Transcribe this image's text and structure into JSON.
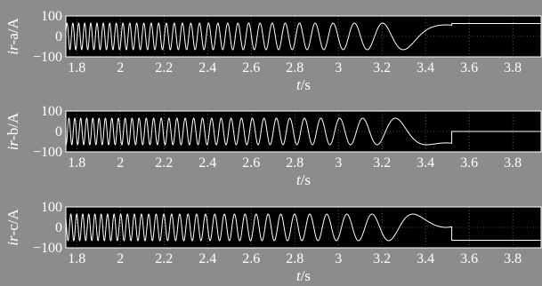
{
  "chart_data": [
    {
      "type": "line",
      "ylabel_italic": "ir",
      "ylabel_rest": "-a/A",
      "xlabel_italic": "t",
      "xlabel_rest": "/s",
      "xlim": [
        1.75,
        3.93
      ],
      "ylim": [
        -100,
        100
      ],
      "xticks": [
        "1.8",
        "2",
        "2.2",
        "2.4",
        "2.6",
        "2.8",
        "3",
        "3.2",
        "3.4",
        "3.6",
        "3.8"
      ],
      "yticks": [
        "100",
        "0",
        "−100"
      ],
      "grid": true,
      "amplitude": 65,
      "freq_start_hz": 38,
      "chirp_rate_hz_per_s": 21.8,
      "phase_rad": 0.3,
      "cutoff_s": 3.52,
      "end_value": 63
    },
    {
      "type": "line",
      "ylabel_italic": "ir",
      "ylabel_rest": "-b/A",
      "xlabel_italic": "t",
      "xlabel_rest": "/s",
      "xlim": [
        1.75,
        3.93
      ],
      "ylim": [
        -100,
        100
      ],
      "xticks": [
        "1.8",
        "2",
        "2.2",
        "2.4",
        "2.6",
        "2.8",
        "3",
        "3.2",
        "3.4",
        "3.6",
        "3.8"
      ],
      "yticks": [
        "100",
        "0",
        "−100"
      ],
      "grid": true,
      "amplitude": 65,
      "freq_start_hz": 38,
      "chirp_rate_hz_per_s": 21.8,
      "phase_rad": -1.79,
      "cutoff_s": 3.52,
      "end_value": 0
    },
    {
      "type": "line",
      "ylabel_italic": "ir",
      "ylabel_rest": "-c/A",
      "xlabel_italic": "t",
      "xlabel_rest": "/s",
      "xlim": [
        1.75,
        3.93
      ],
      "ylim": [
        -100,
        100
      ],
      "xticks": [
        "1.8",
        "2",
        "2.2",
        "2.4",
        "2.6",
        "2.8",
        "3",
        "3.2",
        "3.4",
        "3.6",
        "3.8"
      ],
      "yticks": [
        "100",
        "0",
        "−100"
      ],
      "grid": true,
      "amplitude": 65,
      "freq_start_hz": 38,
      "chirp_rate_hz_per_s": 21.8,
      "phase_rad": 2.39,
      "cutoff_s": 3.52,
      "end_value": -63
    }
  ]
}
